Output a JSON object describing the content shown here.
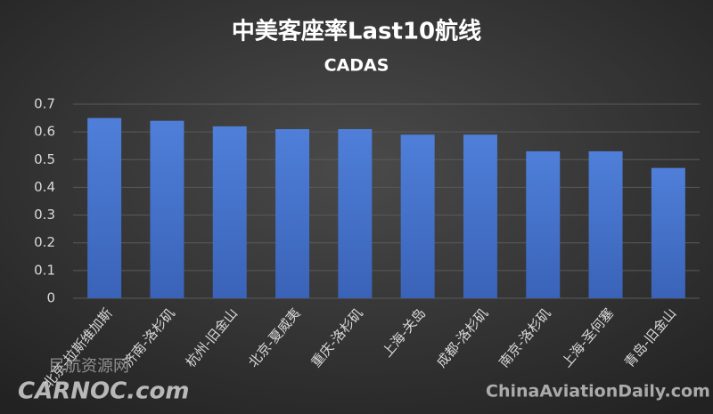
{
  "chart_data": {
    "type": "bar",
    "title": "中美客座率Last10航线",
    "subtitle": "CADAS",
    "categories": [
      "北京-拉斯维加斯",
      "济南-洛杉矶",
      "杭州-旧金山",
      "北京-夏威夷",
      "重庆-洛杉矶",
      "上海-关岛",
      "成都-洛杉矶",
      "南京-洛杉矶",
      "上海-圣何塞",
      "青岛-旧金山"
    ],
    "values": [
      0.65,
      0.64,
      0.62,
      0.61,
      0.61,
      0.59,
      0.59,
      0.53,
      0.53,
      0.47
    ],
    "color": "#4472c4",
    "ylim": [
      0,
      0.7
    ],
    "yticks": [
      0,
      0.1,
      0.2,
      0.3,
      0.4,
      0.5,
      0.6,
      0.7
    ],
    "grid": true
  },
  "watermarks": {
    "left_top": "民航资源网",
    "left_bottom": "CARNOC.com",
    "right": "ChinaAviationDaily.com"
  }
}
